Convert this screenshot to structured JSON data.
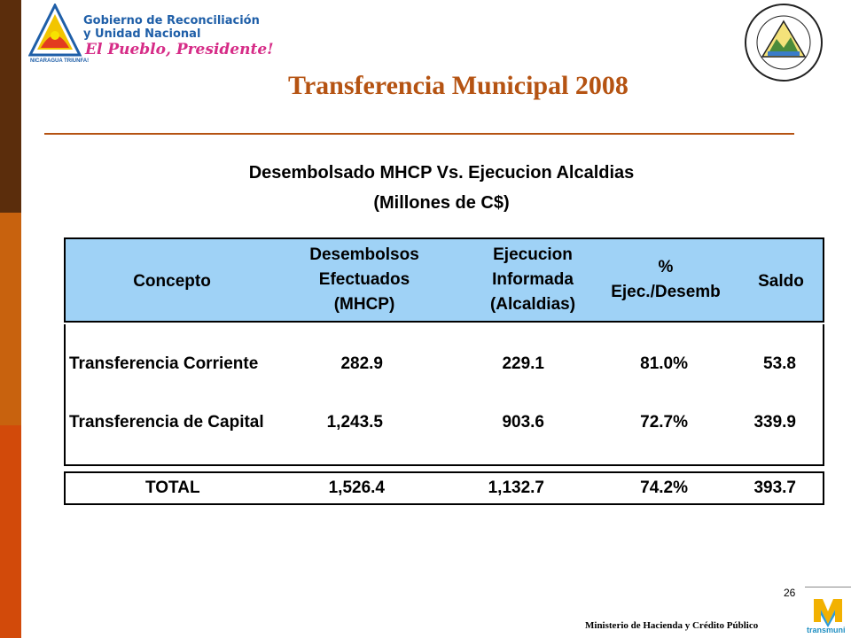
{
  "header": {
    "gov_line1": "Gobierno de Reconciliación",
    "gov_line2": "y Unidad Nacional",
    "slogan": "El Pueblo, Presidente!",
    "small_text": "NICARAGUA TRIUNFA!"
  },
  "title": "Transferencia Municipal 2008",
  "table": {
    "heading_line1": "Desembolsado MHCP Vs. Ejecucion Alcaldias",
    "heading_line2": "(Millones de C$)",
    "columns": [
      {
        "lines": [
          "Concepto"
        ]
      },
      {
        "lines": [
          "Desembolsos",
          "Efectuados",
          "(MHCP)"
        ]
      },
      {
        "lines": [
          "Ejecucion",
          "Informada",
          "(Alcaldias)"
        ]
      },
      {
        "lines": [
          "%",
          "Ejec./Desemb"
        ]
      },
      {
        "lines": [
          "Saldo"
        ]
      }
    ],
    "rows": [
      {
        "concepto": "Transferencia Corriente",
        "desembolsos": "282.9",
        "ejecucion": "229.1",
        "pct": "81.0%",
        "saldo": "53.8"
      },
      {
        "concepto": "Transferencia de Capital",
        "desembolsos": "1,243.5",
        "ejecucion": "903.6",
        "pct": "72.7%",
        "saldo": "339.9"
      }
    ],
    "total": {
      "concepto": "TOTAL",
      "desembolsos": "1,526.4",
      "ejecucion": "1,132.7",
      "pct": "74.2%",
      "saldo": "393.7"
    }
  },
  "footer": {
    "page_number": "26",
    "ministry": "Ministerio de Hacienda y Crédito Público",
    "logo_label": "transmuni"
  },
  "colors": {
    "title": "#b55312",
    "header_fill": "#9fd2f6",
    "band_top": "#5b2d0c",
    "band_mid": "#c8620e",
    "band_bottom": "#d24a0a"
  }
}
